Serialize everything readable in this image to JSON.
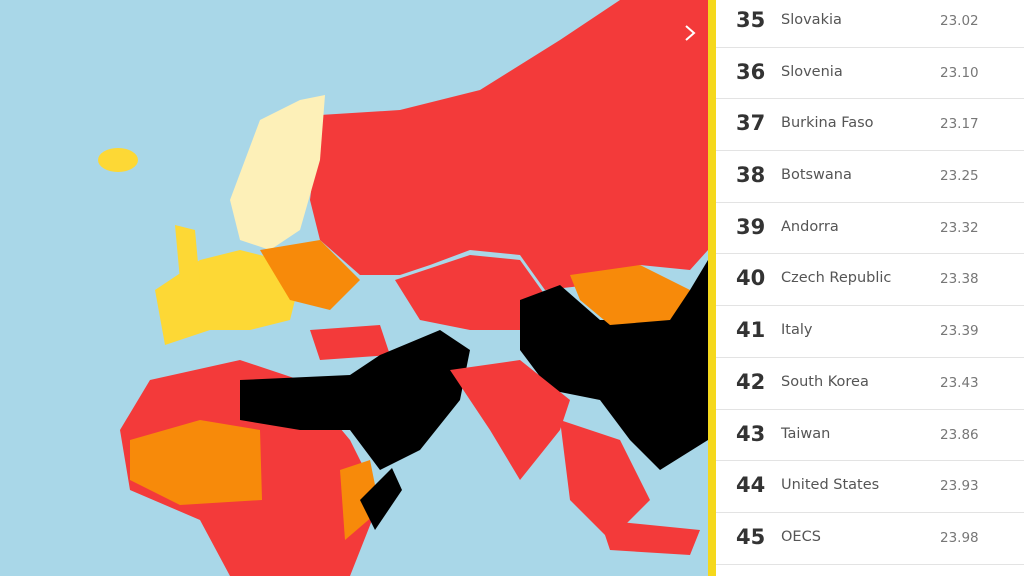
{
  "rankings": [
    {
      "rank": 35,
      "country": "Slovakia",
      "score": "23.02"
    },
    {
      "rank": 36,
      "country": "Slovenia",
      "score": "23.10"
    },
    {
      "rank": 37,
      "country": "Burkina Faso",
      "score": "23.17"
    },
    {
      "rank": 38,
      "country": "Botswana",
      "score": "23.25"
    },
    {
      "rank": 39,
      "country": "Andorra",
      "score": "23.32"
    },
    {
      "rank": 40,
      "country": "Czech Republic",
      "score": "23.38"
    },
    {
      "rank": 41,
      "country": "Italy",
      "score": "23.39"
    },
    {
      "rank": 42,
      "country": "South Korea",
      "score": "23.43"
    },
    {
      "rank": 43,
      "country": "Taiwan",
      "score": "23.86"
    },
    {
      "rank": 44,
      "country": "United States",
      "score": "23.93"
    },
    {
      "rank": 45,
      "country": "OECS",
      "score": "23.98"
    }
  ]
}
